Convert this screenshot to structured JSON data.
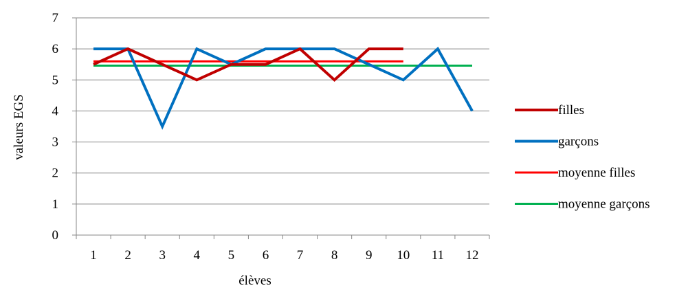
{
  "chart_data": {
    "type": "line",
    "x": [
      1,
      2,
      3,
      4,
      5,
      6,
      7,
      8,
      9,
      10,
      11,
      12
    ],
    "xlabel": "élèves",
    "ylabel": "valeurs  EGS",
    "ylim": [
      0,
      7
    ],
    "yticks": [
      0,
      1,
      2,
      3,
      4,
      5,
      6,
      7
    ],
    "grid": "horizontal",
    "legend_position": "right",
    "series": [
      {
        "name": "filles",
        "color": "#C00000",
        "values": [
          5.5,
          6,
          5.5,
          5,
          5.5,
          5.5,
          6,
          5,
          6,
          6,
          null,
          null
        ]
      },
      {
        "name": "garçons",
        "color": "#0070C0",
        "values": [
          6,
          6,
          3.5,
          6,
          5.5,
          6,
          6,
          6,
          5.5,
          5,
          6,
          4
        ]
      },
      {
        "name": "moyenne filles",
        "color": "#FF0000",
        "values": [
          5.6,
          5.6,
          5.6,
          5.6,
          5.6,
          5.6,
          5.6,
          5.6,
          5.6,
          5.6,
          null,
          null
        ]
      },
      {
        "name": "moyenne garçons",
        "color": "#00B050",
        "values": [
          5.46,
          5.46,
          5.46,
          5.46,
          5.46,
          5.46,
          5.46,
          5.46,
          5.46,
          5.46,
          5.46,
          5.46
        ]
      }
    ]
  }
}
